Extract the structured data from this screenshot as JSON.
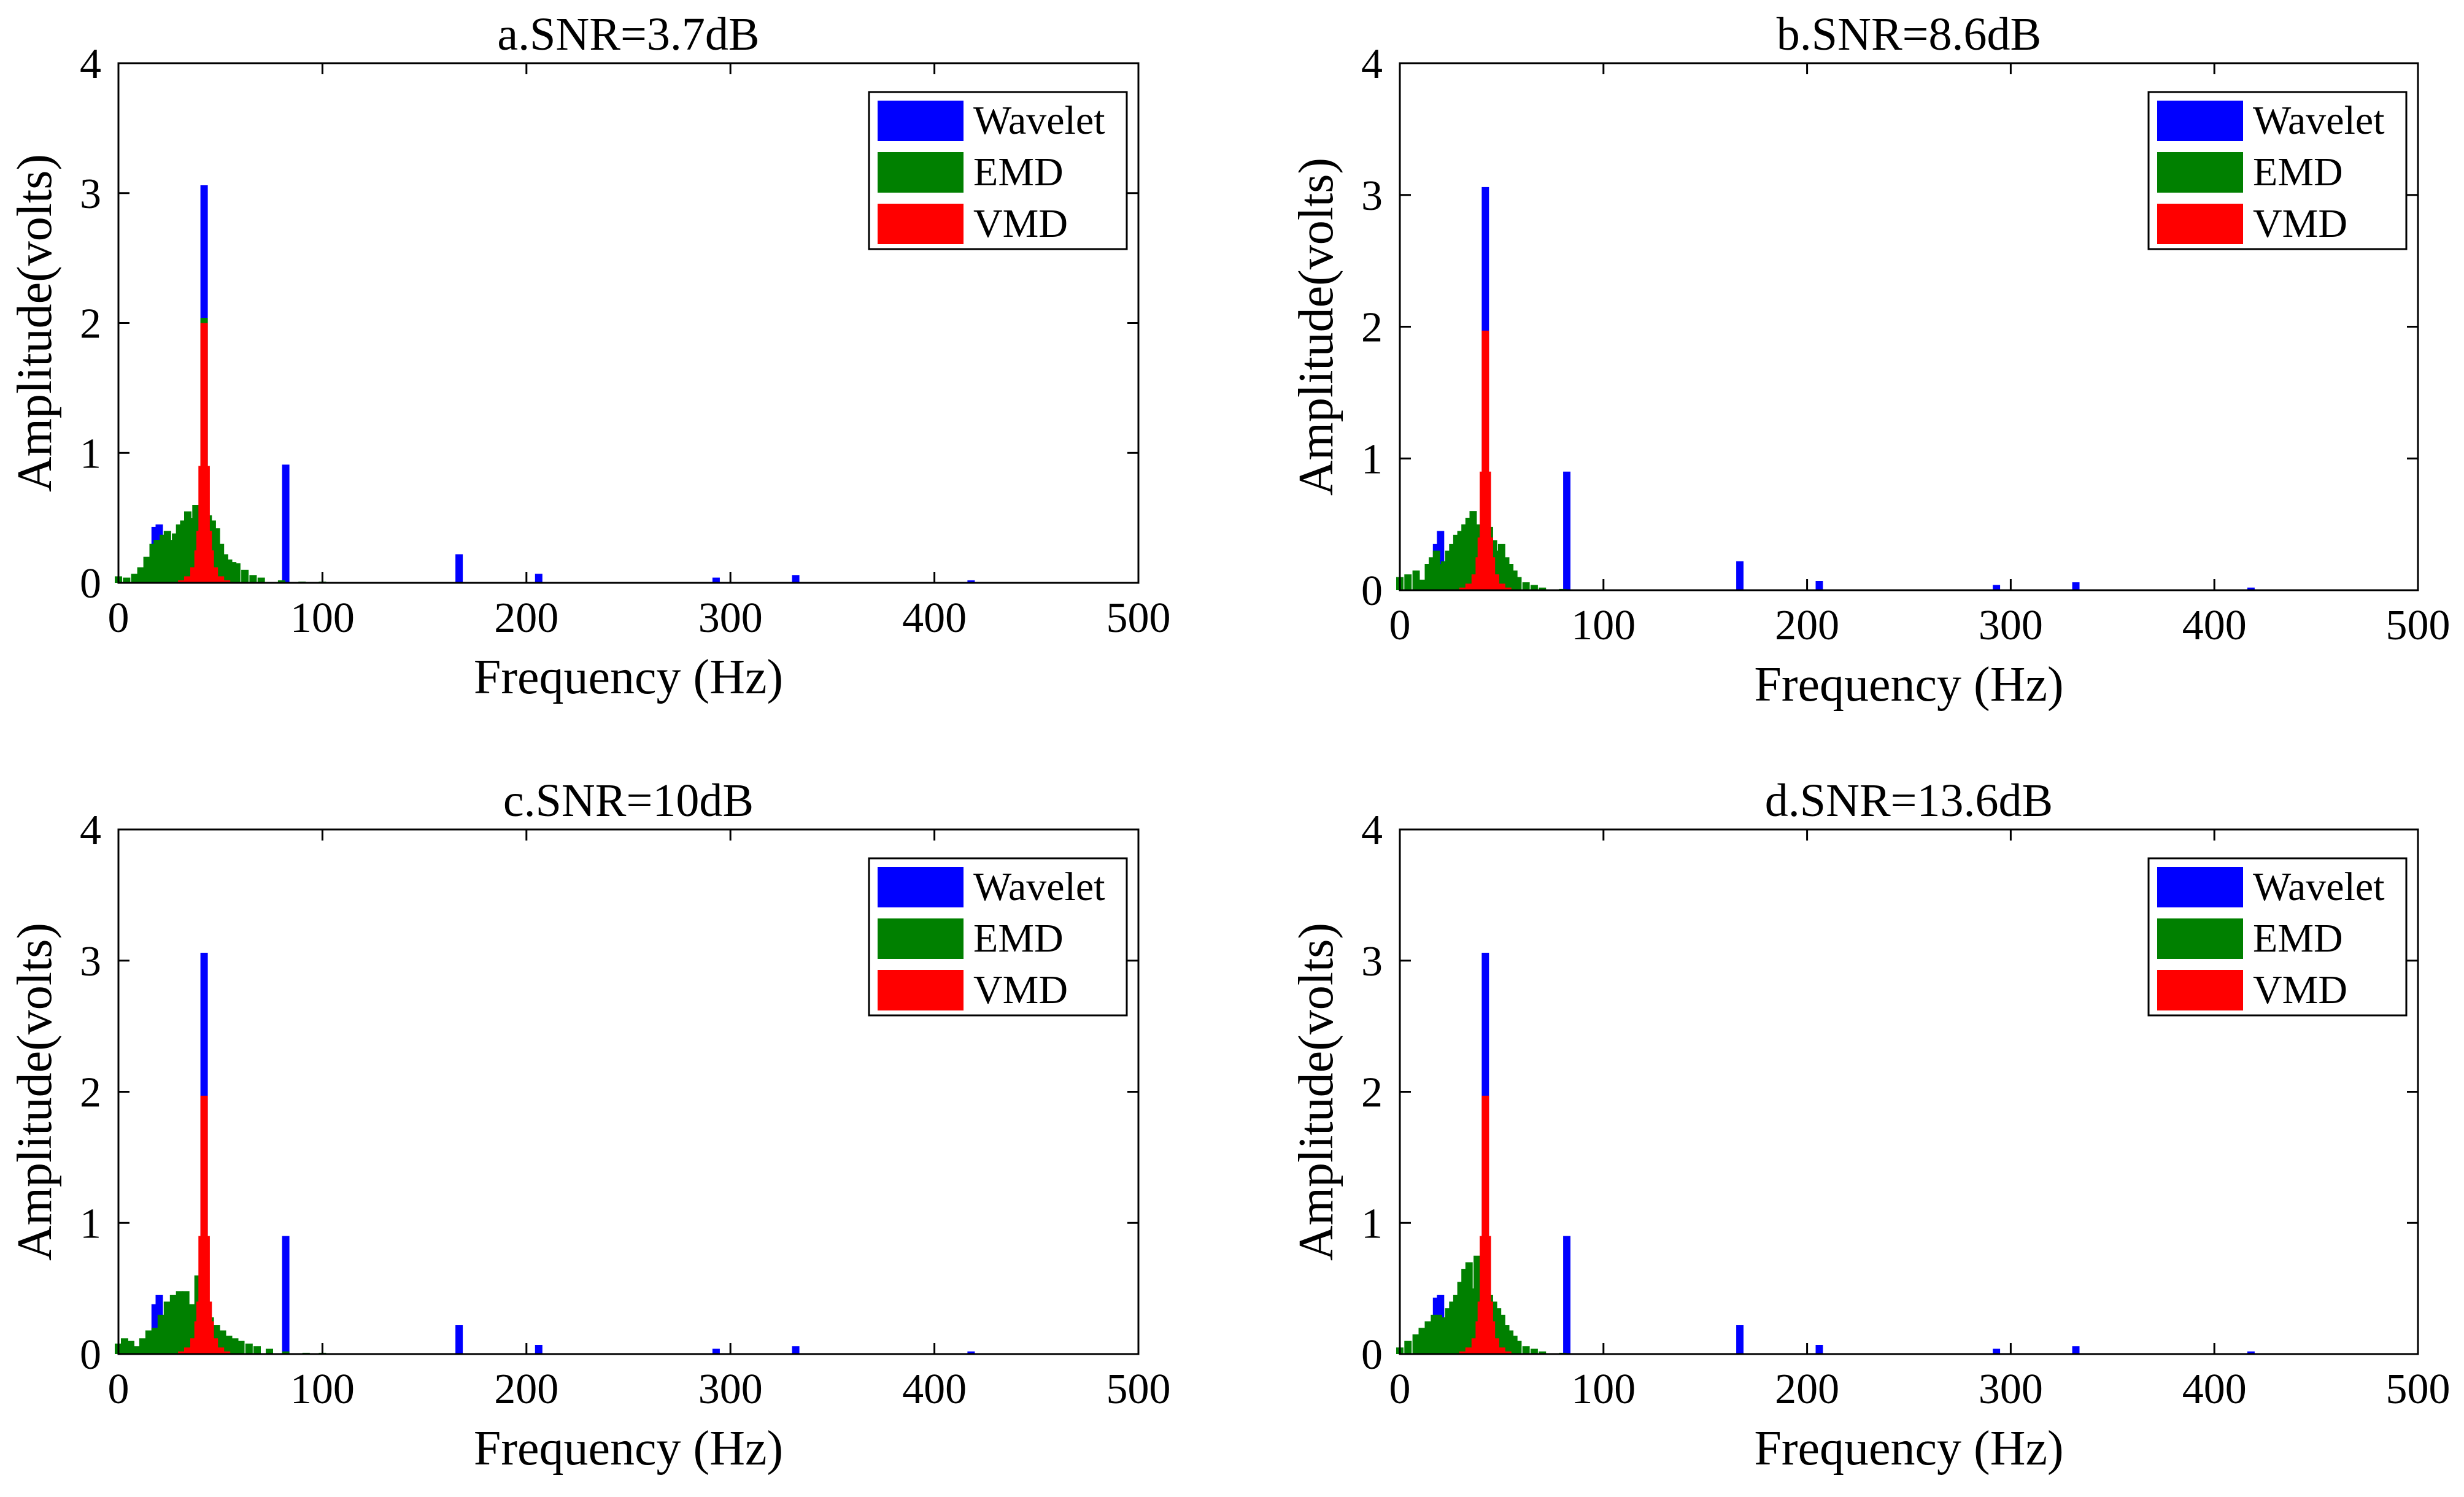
{
  "figure": {
    "series_names": [
      "Wavelet",
      "EMD",
      "VMD"
    ],
    "series_colors": [
      "#0000ff",
      "#008000",
      "#ff0000"
    ],
    "axis_color": "#000000"
  },
  "chart_data": [
    {
      "type": "bar",
      "title": "a.SNR=3.7dB",
      "xlabel": "Frequency (Hz)",
      "ylabel": "Amplitude(volts)",
      "xlim": [
        0,
        500
      ],
      "ylim": [
        0,
        4
      ],
      "xticks": [
        0,
        100,
        200,
        300,
        400,
        500
      ],
      "yticks": [
        0,
        1,
        2,
        3,
        4
      ],
      "legend": [
        "Wavelet",
        "EMD",
        "VMD"
      ],
      "legend_position": "top-right",
      "series": [
        {
          "name": "Wavelet",
          "color": "#0000ff",
          "x": [
            18,
            20,
            42,
            82,
            167,
            206,
            293,
            332,
            418
          ],
          "values": [
            0.43,
            0.45,
            3.06,
            0.91,
            0.22,
            0.07,
            0.04,
            0.06,
            0.02
          ]
        },
        {
          "name": "EMD",
          "color": "#008000",
          "x": [
            0,
            4,
            8,
            11,
            14,
            17,
            19,
            22,
            24,
            26,
            28,
            30,
            32,
            34,
            36,
            38,
            40,
            42,
            44,
            46,
            48,
            50,
            52,
            54,
            56,
            58,
            62,
            66,
            70,
            80,
            90,
            100
          ],
          "values": [
            0.05,
            0.04,
            0.07,
            0.12,
            0.2,
            0.3,
            0.33,
            0.37,
            0.4,
            0.33,
            0.38,
            0.45,
            0.48,
            0.55,
            0.5,
            0.6,
            0.55,
            2.04,
            0.52,
            0.48,
            0.42,
            0.3,
            0.22,
            0.18,
            0.16,
            0.15,
            0.1,
            0.06,
            0.04,
            0.02,
            0.01,
            0.01
          ]
        },
        {
          "name": "VMD",
          "color": "#ff0000",
          "x": [
            31,
            34,
            37,
            39,
            40,
            41,
            42,
            43,
            44,
            45,
            47,
            50,
            53
          ],
          "values": [
            0.02,
            0.05,
            0.12,
            0.25,
            0.4,
            0.9,
            2.0,
            0.9,
            0.4,
            0.25,
            0.12,
            0.05,
            0.02
          ]
        }
      ]
    },
    {
      "type": "bar",
      "title": "b.SNR=8.6dB",
      "xlabel": "Frequency (Hz)",
      "ylabel": "Amplitude(volts)",
      "xlim": [
        0,
        500
      ],
      "ylim": [
        0,
        4
      ],
      "xticks": [
        0,
        100,
        200,
        300,
        400,
        500
      ],
      "yticks": [
        0,
        1,
        2,
        3,
        4
      ],
      "legend": [
        "Wavelet",
        "EMD",
        "VMD"
      ],
      "legend_position": "top-right",
      "series": [
        {
          "name": "Wavelet",
          "color": "#0000ff",
          "x": [
            18,
            20,
            42,
            82,
            167,
            206,
            293,
            332,
            418
          ],
          "values": [
            0.35,
            0.45,
            3.06,
            0.9,
            0.22,
            0.07,
            0.04,
            0.06,
            0.02
          ]
        },
        {
          "name": "EMD",
          "color": "#008000",
          "x": [
            0,
            4,
            8,
            11,
            14,
            16,
            18,
            20,
            22,
            24,
            26,
            28,
            30,
            32,
            34,
            36,
            38,
            40,
            42,
            44,
            46,
            48,
            50,
            52,
            54,
            56,
            58,
            62,
            66,
            70,
            80
          ],
          "values": [
            0.1,
            0.12,
            0.15,
            0.08,
            0.2,
            0.25,
            0.3,
            0.2,
            0.22,
            0.3,
            0.35,
            0.42,
            0.45,
            0.5,
            0.55,
            0.6,
            0.5,
            0.42,
            0.55,
            0.48,
            0.38,
            0.3,
            0.35,
            0.25,
            0.2,
            0.15,
            0.1,
            0.06,
            0.04,
            0.02,
            0.01
          ]
        },
        {
          "name": "VMD",
          "color": "#ff0000",
          "x": [
            31,
            34,
            37,
            39,
            40,
            41,
            42,
            43,
            44,
            45,
            47,
            50,
            53
          ],
          "values": [
            0.02,
            0.05,
            0.12,
            0.25,
            0.4,
            0.9,
            1.97,
            0.9,
            0.4,
            0.25,
            0.12,
            0.05,
            0.02
          ]
        }
      ]
    },
    {
      "type": "bar",
      "title": "c.SNR=10dB",
      "xlabel": "Frequency (Hz)",
      "ylabel": "Amplitude(volts)",
      "xlim": [
        0,
        500
      ],
      "ylim": [
        0,
        4
      ],
      "xticks": [
        0,
        100,
        200,
        300,
        400,
        500
      ],
      "yticks": [
        0,
        1,
        2,
        3,
        4
      ],
      "legend": [
        "Wavelet",
        "EMD",
        "VMD"
      ],
      "legend_position": "top-right",
      "series": [
        {
          "name": "Wavelet",
          "color": "#0000ff",
          "x": [
            18,
            20,
            42,
            82,
            167,
            206,
            293,
            332,
            418
          ],
          "values": [
            0.38,
            0.45,
            3.06,
            0.9,
            0.22,
            0.07,
            0.04,
            0.06,
            0.02
          ]
        },
        {
          "name": "EMD",
          "color": "#008000",
          "x": [
            0,
            3,
            6,
            9,
            12,
            15,
            18,
            21,
            24,
            27,
            30,
            33,
            36,
            39,
            42,
            45,
            48,
            51,
            54,
            57,
            60,
            64,
            68,
            74,
            82,
            92,
            100
          ],
          "values": [
            0.08,
            0.12,
            0.1,
            0.06,
            0.12,
            0.18,
            0.2,
            0.3,
            0.4,
            0.45,
            0.48,
            0.48,
            0.38,
            0.6,
            0.3,
            0.28,
            0.22,
            0.18,
            0.14,
            0.12,
            0.1,
            0.08,
            0.06,
            0.04,
            0.02,
            0.01,
            0.01
          ]
        },
        {
          "name": "VMD",
          "color": "#ff0000",
          "x": [
            31,
            34,
            37,
            39,
            40,
            41,
            42,
            43,
            44,
            45,
            47,
            50,
            53
          ],
          "values": [
            0.02,
            0.05,
            0.12,
            0.25,
            0.4,
            0.9,
            1.97,
            0.9,
            0.4,
            0.25,
            0.12,
            0.05,
            0.02
          ]
        }
      ]
    },
    {
      "type": "bar",
      "title": "d.SNR=13.6dB",
      "xlabel": "Frequency (Hz)",
      "ylabel": "Amplitude(volts)",
      "xlim": [
        0,
        500
      ],
      "ylim": [
        0,
        4
      ],
      "xticks": [
        0,
        100,
        200,
        300,
        400,
        500
      ],
      "yticks": [
        0,
        1,
        2,
        3,
        4
      ],
      "legend": [
        "Wavelet",
        "EMD",
        "VMD"
      ],
      "legend_position": "top-right",
      "series": [
        {
          "name": "Wavelet",
          "color": "#0000ff",
          "x": [
            18,
            20,
            42,
            82,
            167,
            206,
            293,
            332,
            418
          ],
          "values": [
            0.43,
            0.45,
            3.06,
            0.9,
            0.22,
            0.07,
            0.04,
            0.06,
            0.02
          ]
        },
        {
          "name": "EMD",
          "color": "#008000",
          "x": [
            0,
            4,
            8,
            11,
            14,
            17,
            19,
            22,
            24,
            26,
            28,
            30,
            32,
            34,
            36,
            38,
            40,
            42,
            44,
            46,
            48,
            50,
            52,
            54,
            56,
            58,
            62,
            66,
            70,
            80
          ],
          "values": [
            0.05,
            0.1,
            0.15,
            0.2,
            0.25,
            0.3,
            0.3,
            0.28,
            0.35,
            0.4,
            0.45,
            0.55,
            0.65,
            0.7,
            0.5,
            0.75,
            0.6,
            0.55,
            0.45,
            0.4,
            0.35,
            0.3,
            0.22,
            0.18,
            0.14,
            0.1,
            0.06,
            0.04,
            0.02,
            0.01
          ]
        },
        {
          "name": "VMD",
          "color": "#ff0000",
          "x": [
            31,
            34,
            37,
            39,
            40,
            41,
            42,
            43,
            44,
            45,
            47,
            50,
            53
          ],
          "values": [
            0.02,
            0.05,
            0.12,
            0.25,
            0.4,
            0.9,
            1.97,
            0.9,
            0.4,
            0.25,
            0.12,
            0.05,
            0.02
          ]
        }
      ]
    }
  ]
}
